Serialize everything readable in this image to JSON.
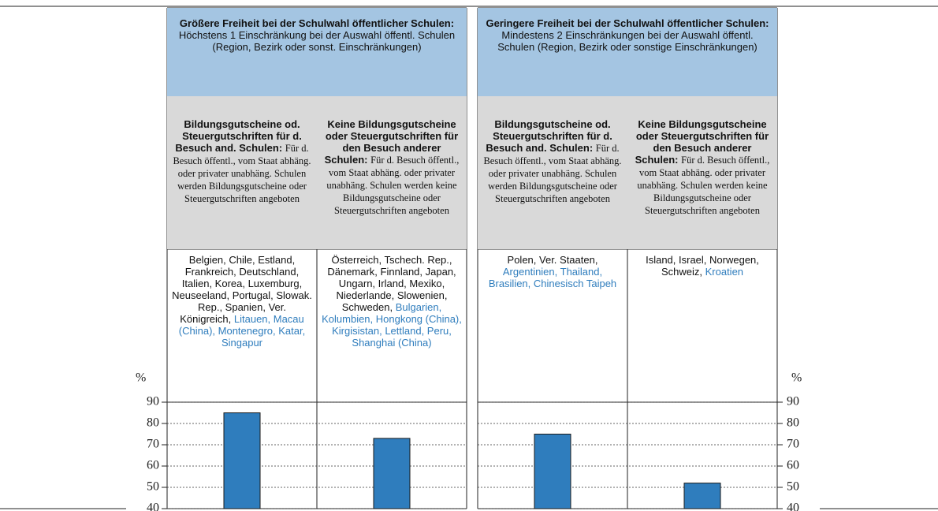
{
  "chart_data": {
    "type": "bar",
    "y_label": "%",
    "ylim": [
      40,
      90
    ],
    "yticks": [
      40,
      50,
      60,
      70,
      80,
      90
    ],
    "grid": true,
    "color": "#2f7dbd",
    "groups": [
      {
        "title_bold": "Größere Freiheit bei der Schulwahl öffentlicher Schulen:",
        "title_text": "Höchstens 1 Einschränkung bei der Auswahl öffentl. Schulen (Region, Bezirk oder sonst. Einschränkungen)"
      },
      {
        "title_bold": "Geringere Freiheit bei der Schulwahl öffentlicher Schulen:",
        "title_text": "Mindestens 2 Einschränkungen bei der Auswahl öffentl. Schulen (Region, Bezirk oder sonstige Einschränkungen)"
      }
    ],
    "columns": [
      {
        "heading_bold": "Bildungsgutscheine od. Steuergutschriften für d. Besuch and. Schulen:",
        "heading_text": "Für d. Besuch öffentl., vom Staat abhäng. oder privater unabhäng. Schulen werden Bildungsgutscheine oder Steuergutschriften angeboten",
        "countries": "Belgien, Chile, Estland, Frankreich, Deutschland, Italien, Korea, Luxemburg, Neuseeland, Portugal, Slowak. Rep., Spanien, Ver. Königreich,",
        "countries_partner": "Litauen, Macau (China), Montenegro, Katar, Singapur"
      },
      {
        "heading_bold": "Keine Bildungsgutscheine oder Steuergutschriften für den Besuch anderer Schulen:",
        "heading_text": "Für d. Besuch öffentl., vom Staat abhäng. oder privater unabhäng. Schulen werden keine Bildungsgutscheine oder Steuergutschriften angeboten",
        "countries": "Österreich, Tschech. Rep., Dänemark, Finnland, Japan, Ungarn, Irland, Mexiko, Niederlande, Slowenien, Schweden,",
        "countries_partner": "Bulgarien, Kolumbien, Hongkong (China), Kirgisistan, Lettland, Peru, Shanghai (China)"
      },
      {
        "heading_bold": "Bildungsgutscheine od. Steuergutschriften für d. Besuch and. Schulen:",
        "heading_text": "Für d. Besuch öffentl., vom Staat abhäng. oder privater unabhäng. Schulen werden Bildungsgutscheine oder Steuergutschriften angeboten",
        "countries": "Polen, Ver. Staaten,",
        "countries_partner": "Argentinien, Thailand, Brasilien, Chinesisch Taipeh"
      },
      {
        "heading_bold": "Keine Bildungsgutscheine oder Steuergutschriften für den Besuch anderer Schulen:",
        "heading_text": "Für d. Besuch öffentl., vom Staat abhäng. oder privater unabhäng. Schulen werden keine Bildungsgutscheine oder Steuergutschriften angeboten",
        "countries": "Island, Israel, Norwegen, Schweiz,",
        "countries_partner": "Kroatien"
      }
    ],
    "values": [
      85,
      73,
      75,
      52
    ]
  }
}
